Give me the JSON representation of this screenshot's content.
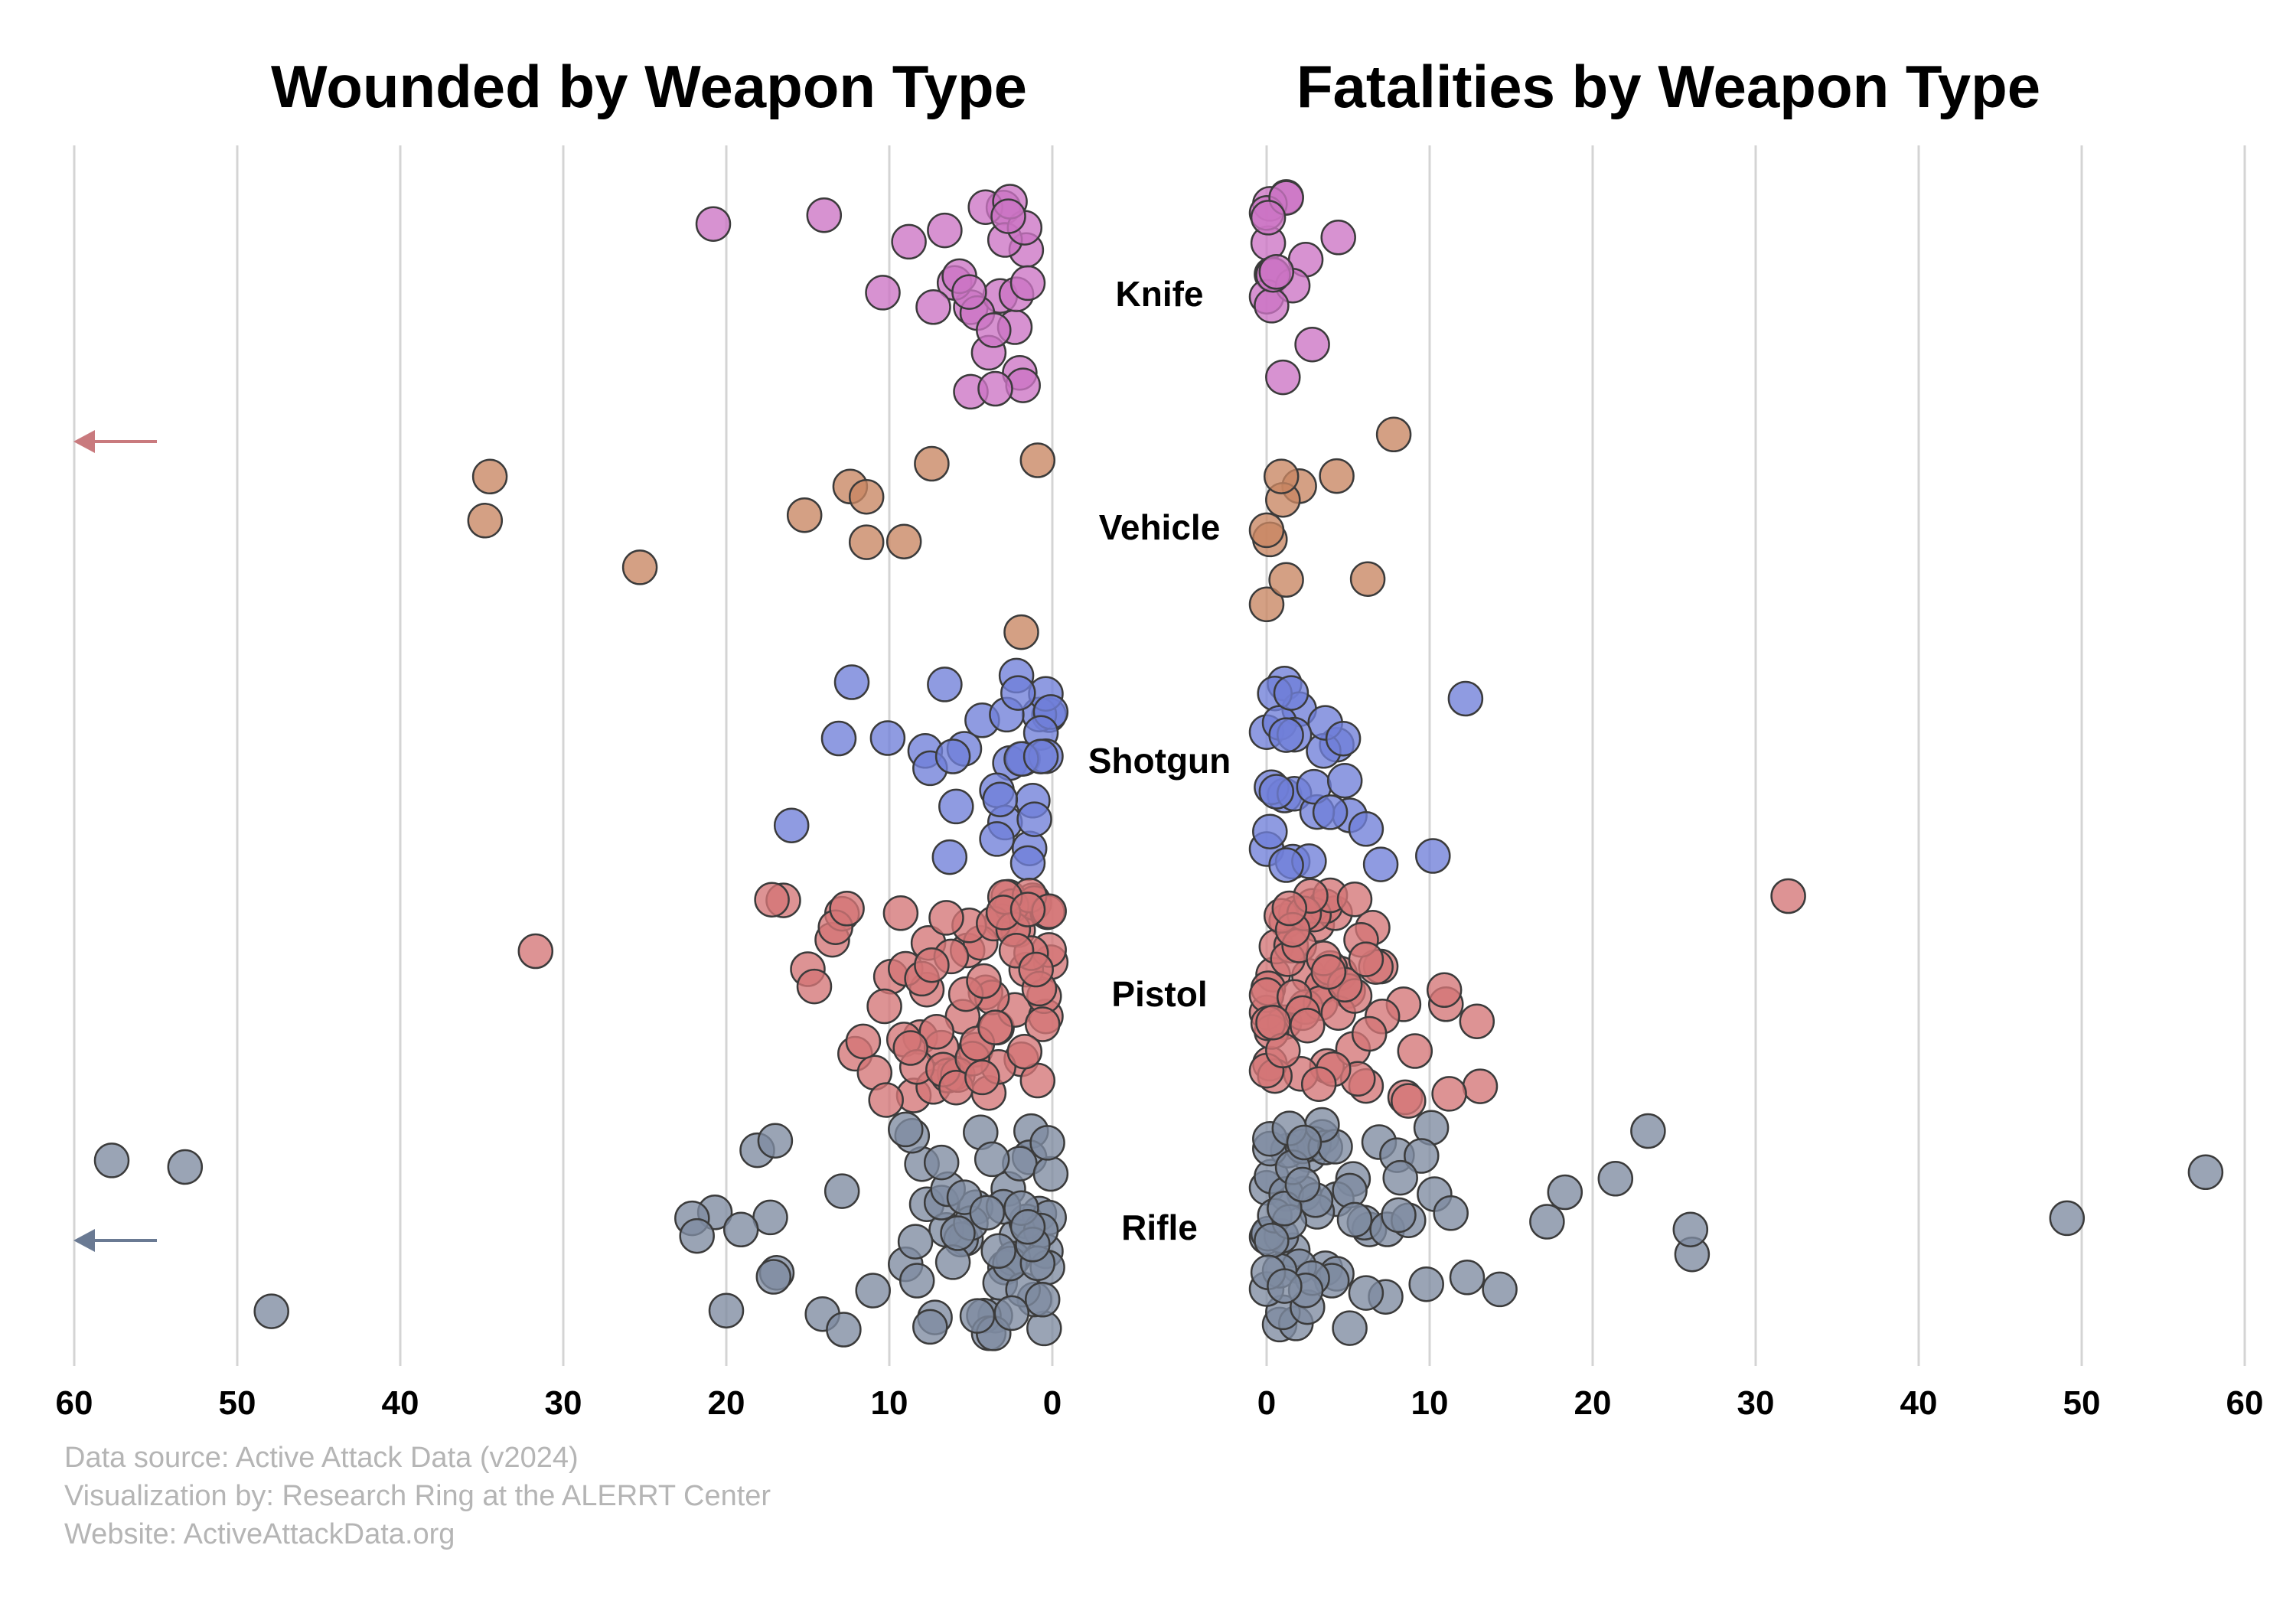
{
  "chart_data": [
    {
      "type": "scatter",
      "title": "Wounded by Weapon Type",
      "xlim": [
        60,
        0
      ],
      "xticks": [
        "60",
        "50",
        "40",
        "30",
        "20",
        "10",
        "0"
      ],
      "categories": [
        "Knife",
        "Vehicle",
        "Shotgun",
        "Pistol",
        "Rifle"
      ],
      "grid": true,
      "off_scale_arrows": [
        {
          "category": "Vehicle",
          "color": "#c97a7e"
        },
        {
          "category": "Rifle",
          "color": "#6a7a93"
        }
      ],
      "series": [
        {
          "category": "Knife",
          "color": "#cc73c4",
          "values": [
            10.4,
            5,
            14,
            8.8,
            6,
            3.2,
            3,
            2,
            4.6,
            5.7,
            1.6,
            3.9,
            2.3,
            4.1,
            2.2,
            2.9,
            3.6,
            20.8,
            7.3,
            5.1,
            1.7,
            2.6,
            1.8,
            5,
            2.7,
            1.5,
            3.5,
            6.6
          ]
        },
        {
          "category": "Vehicle",
          "color": "#c88562",
          "values": [
            15.2,
            11.4,
            25.3,
            12.4,
            7.4,
            1.9,
            34.8,
            34.5,
            9.1,
            11.4,
            0.9
          ]
        },
        {
          "category": "Shotgun",
          "color": "#6f7fd8",
          "values": [
            16,
            13.1,
            10.1,
            12.3,
            6.3,
            0.2,
            1.4,
            2.6,
            0.8,
            3.4,
            5.4,
            2.9,
            1.2,
            0.4,
            0.1,
            1.8,
            6.6,
            2.2,
            7.8,
            5.9,
            3.2,
            1.5,
            0.7,
            0.4,
            7.5,
            6.1,
            3.4,
            1.9,
            0.7,
            4.3,
            2.8,
            1.1,
            2.1
          ]
        },
        {
          "category": "Pistol",
          "color": "#d47476",
          "values": [
            31.7,
            12.1,
            10.9,
            8.5,
            7.3,
            6,
            4.7,
            3.4,
            2.3,
            1.2,
            0.1,
            15,
            13.5,
            9.9,
            8.1,
            6.8,
            5.2,
            3.9,
            2.7,
            1.6,
            0.4,
            14.6,
            12.9,
            10.2,
            7.7,
            6.4,
            5.5,
            4.1,
            3.1,
            1.9,
            0.9,
            0.2,
            16.5,
            13.3,
            11.6,
            9.1,
            7.1,
            5.8,
            4.4,
            3.3,
            2.1,
            1.1,
            0.3,
            17.2,
            10.3,
            8.3,
            6.7,
            5.1,
            3.7,
            2.5,
            1.3,
            0.5,
            12.6,
            9,
            7.6,
            6.2,
            4.9,
            3.6,
            2.4,
            1.4,
            0.6,
            9.3,
            8,
            6.5,
            5.3,
            4.2,
            2.9,
            1.7,
            0.8,
            8.7,
            7.4,
            5.9,
            4.6,
            3.5,
            2.2,
            1,
            0.2,
            4.3,
            3,
            1.5
          ]
        },
        {
          "category": "Rifle",
          "color": "#7d8ba0",
          "values": [
            8,
            2.7,
            1.3,
            0.4,
            17.3,
            7.7,
            5.3,
            3.5,
            2.2,
            0.8,
            18.1,
            14.1,
            9,
            6.5,
            4.2,
            2.9,
            1.6,
            0.5,
            47.9,
            20.7,
            19.1,
            16.9,
            11,
            7.2,
            5.6,
            3.9,
            2.4,
            1.1,
            0.2,
            17,
            12.8,
            8.4,
            6.1,
            4.7,
            3.2,
            1.8,
            0.7,
            22.1,
            20,
            17.1,
            8.6,
            6.8,
            5,
            3.6,
            2.6,
            1.4,
            0.3,
            57.7,
            53.2,
            21.8,
            12.9,
            9,
            7.5,
            5.8,
            4.4,
            3,
            2,
            0.9,
            0.1,
            8.3,
            6.4,
            4.6,
            3.3,
            1.9,
            0.6,
            6.8,
            5.4,
            4,
            2.5,
            1.2,
            0.3,
            3.7,
            1.5
          ]
        }
      ]
    },
    {
      "type": "scatter",
      "title": "Fatalities by Weapon Type",
      "xlim": [
        0,
        60
      ],
      "xticks": [
        "0",
        "10",
        "20",
        "30",
        "40",
        "50",
        "60"
      ],
      "categories": [
        "Knife",
        "Vehicle",
        "Shotgun",
        "Pistol",
        "Rifle"
      ],
      "grid": true,
      "series": [
        {
          "category": "Knife",
          "color": "#cc73c4",
          "values": [
            0.1,
            0.3,
            0,
            2.4,
            1.2,
            0.2,
            2.8,
            1.6,
            0.3,
            1,
            0,
            0.4,
            4.4,
            0.6,
            1.2,
            0.1
          ]
        },
        {
          "category": "Vehicle",
          "color": "#c88562",
          "values": [
            6.2,
            0,
            7.8,
            0.2,
            2,
            1,
            0.9,
            1.2,
            0,
            4.3
          ]
        },
        {
          "category": "Shotgun",
          "color": "#6f7fd8",
          "values": [
            1.1,
            0,
            1.6,
            4.3,
            2.6,
            0.2,
            3.5,
            1.1,
            2,
            0.5,
            5.1,
            0.3,
            1.2,
            3.6,
            4.7,
            0,
            12.2,
            10.2,
            1.7,
            6.1,
            3.1,
            0.8,
            2.9,
            1.5,
            3.9,
            7,
            0.6,
            1.7,
            1.2,
            4.8
          ]
        },
        {
          "category": "Pistol",
          "color": "#d47476",
          "values": [
            0,
            1.2,
            2.6,
            3.7,
            5.3,
            8.4,
            11,
            12.9,
            0.4,
            1.8,
            3.1,
            4.5,
            6.1,
            9.1,
            13.1,
            0.1,
            2.1,
            3.4,
            4.2,
            5.6,
            7,
            0.6,
            1.5,
            2.8,
            3.9,
            6.7,
            8.5,
            0.2,
            1.1,
            2.4,
            3.6,
            5,
            6.5,
            0,
            1.3,
            2,
            3.3,
            4.4,
            5.8,
            7.1,
            0.3,
            1.7,
            2.9,
            3.9,
            5.4,
            10.9,
            32,
            0.1,
            0.9,
            2.3,
            3.5,
            4.8,
            6.3,
            11.2,
            0.5,
            1.6,
            2.7,
            4.1,
            8.7,
            0,
            1,
            2.2,
            3.2,
            5.4,
            6.1,
            0.4,
            1.4,
            2.5,
            3.8
          ]
        },
        {
          "category": "Rifle",
          "color": "#7d8ba0",
          "values": [
            0,
            0.8,
            1.6,
            2.6,
            3.6,
            4.3,
            10.1,
            0.3,
            1.3,
            2.3,
            3.4,
            5.3,
            6.3,
            0,
            0.9,
            1.8,
            2.9,
            4.3,
            6.9,
            8,
            9.5,
            10.3,
            0.2,
            1.2,
            2.2,
            3.1,
            5.1,
            7.3,
            17.2,
            0.1,
            1,
            2,
            3,
            4,
            6,
            8.2,
            14.3,
            21.4,
            26.1,
            0.5,
            1.4,
            2.5,
            3.6,
            7.4,
            11.3,
            57.6,
            0,
            0.8,
            1.6,
            2.8,
            4.2,
            8.7,
            9.8,
            0.2,
            1.1,
            2.2,
            3.4,
            5.4,
            12.3,
            18.3,
            23.4,
            26,
            49.1,
            0.3,
            1.4,
            2.4,
            8.1,
            0.1,
            1.1,
            2.3,
            5.1,
            6.1
          ]
        }
      ]
    }
  ],
  "credits": [
    "Data source: Active Attack Data (v2024)",
    "Visualization by: Research Ring at the ALERRT Center",
    "Website: ActiveAttackData.org"
  ]
}
